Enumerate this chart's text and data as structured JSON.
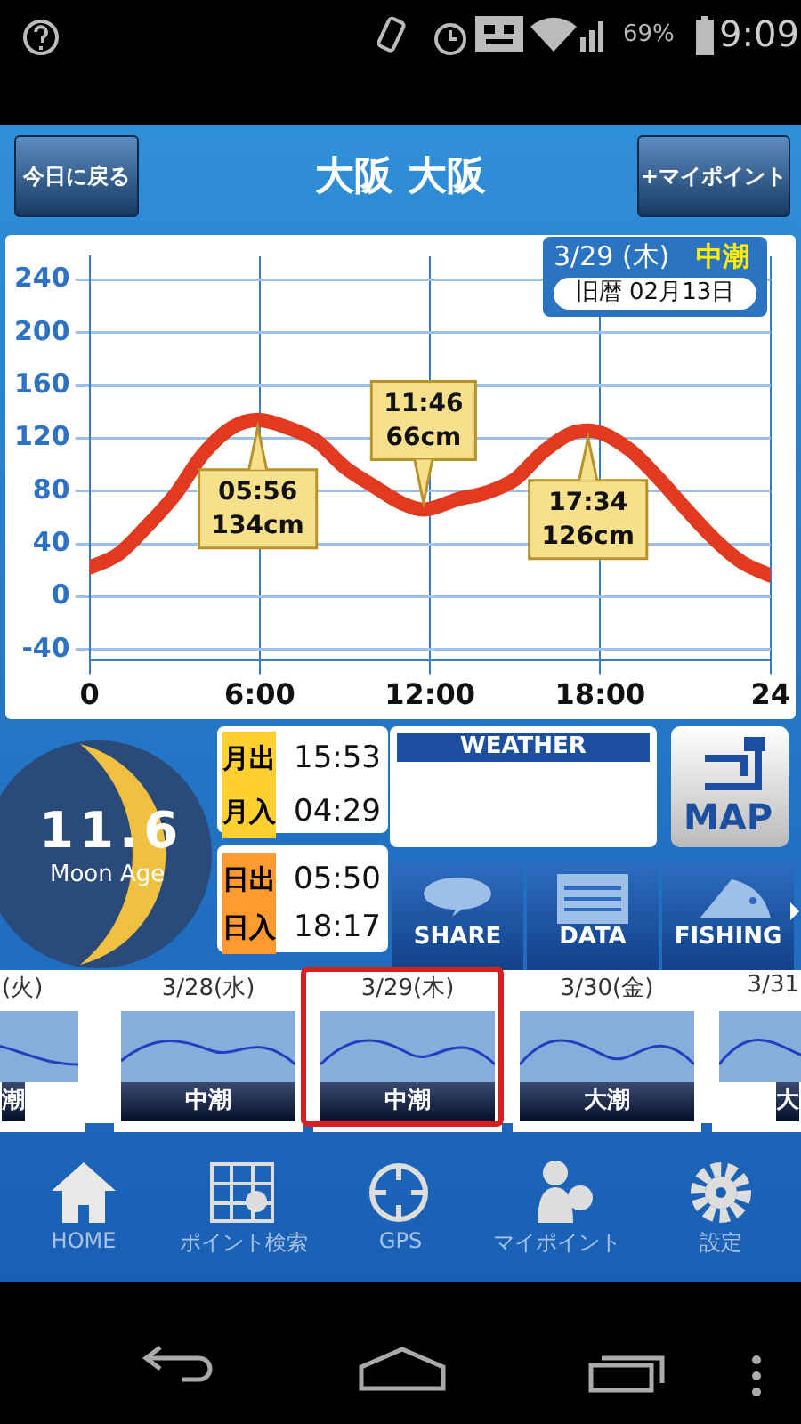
{
  "chart_data": {
    "type": "line",
    "title": "大阪 大阪",
    "x": [
      0,
      1,
      2,
      3,
      4,
      5,
      5.93,
      7,
      8,
      9,
      10,
      11,
      11.77,
      13,
      14,
      15,
      16,
      17,
      17.57,
      19,
      20,
      21,
      22,
      23,
      24
    ],
    "values": [
      22,
      32,
      53,
      77,
      108,
      128,
      134,
      128,
      118,
      98,
      84,
      71,
      66,
      74,
      79,
      89,
      110,
      124,
      126,
      112,
      91,
      67,
      44,
      26,
      16
    ],
    "color": "#e23a20",
    "marker": "none",
    "line_style": "solid",
    "grid": true,
    "xlim": [
      0,
      24
    ],
    "xticks": [
      0,
      {
        "value": 6,
        "label": "6:00"
      },
      {
        "value": 12,
        "label": "12:00"
      },
      {
        "value": 18,
        "label": "18:00"
      },
      24
    ],
    "ylim": [
      -48,
      258
    ],
    "yticks": [
      -40,
      0,
      40,
      80,
      120,
      160,
      200,
      240
    ],
    "annotations": [
      "今日に戻る",
      "+マイポイント",
      "3/29 (木)",
      "中潮",
      "旧暦 02月13日",
      "11.6",
      "Moon Age",
      "月出",
      "15:53",
      "月入",
      "04:29",
      "日出",
      "05:50",
      "日入",
      "18:17",
      "WEATHER",
      "MAP",
      "SHARE",
      "DATA",
      "FISHING",
      "(火)",
      "3/28(水)",
      "3/29(木)",
      "3/30(金)",
      "3/31",
      "潮",
      "中潮",
      "中潮",
      "大潮",
      "大",
      "HOME",
      "ポイント検索",
      "GPS",
      "マイポイント",
      "設定",
      "69%",
      "9:09",
      {
        "text": "05:56\n134cm",
        "x": 5.93,
        "y": 134
      },
      {
        "text": "11:46\n66cm",
        "x": 11.77,
        "y": 66
      },
      {
        "text": "17:34\n126cm",
        "x": 17.57,
        "y": 126
      }
    ]
  }
}
